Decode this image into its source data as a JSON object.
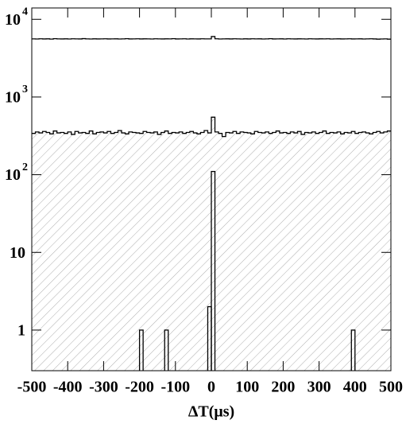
{
  "chart_data": {
    "type": "histogram",
    "xlabel": "ΔT(μs)",
    "log_y": true,
    "xlim": [
      -500,
      500
    ],
    "ylim": [
      0.3,
      14000
    ],
    "xticks": [
      -500,
      -400,
      -300,
      -200,
      -100,
      0,
      100,
      200,
      300,
      400,
      500
    ],
    "yticks": [
      1,
      10,
      {
        "value": 100,
        "label": "10",
        "exponent": "2"
      },
      {
        "value": 1000,
        "label": "10",
        "exponent": "3"
      },
      {
        "value": 10000,
        "label": "10",
        "exponent": "4"
      }
    ],
    "bins": [
      -500,
      -490,
      -480,
      -470,
      -460,
      -450,
      -440,
      -430,
      -420,
      -410,
      -400,
      -390,
      -380,
      -370,
      -360,
      -350,
      -340,
      -330,
      -320,
      -310,
      -300,
      -290,
      -280,
      -270,
      -260,
      -250,
      -240,
      -230,
      -220,
      -210,
      -200,
      -190,
      -180,
      -170,
      -160,
      -150,
      -140,
      -130,
      -120,
      -110,
      -100,
      -90,
      -80,
      -70,
      -60,
      -50,
      -40,
      -30,
      -20,
      -10,
      0,
      10,
      20,
      30,
      40,
      50,
      60,
      70,
      80,
      90,
      100,
      110,
      120,
      130,
      140,
      150,
      160,
      170,
      180,
      190,
      200,
      210,
      220,
      230,
      240,
      250,
      260,
      270,
      280,
      290,
      300,
      310,
      320,
      330,
      340,
      350,
      360,
      370,
      380,
      390,
      400,
      410,
      420,
      430,
      440,
      450,
      460,
      470,
      480,
      490,
      500
    ],
    "series": [
      {
        "color": "#000000",
        "histtype": "step",
        "hatch": false,
        "values": [
          5600,
          5580,
          5620,
          5590,
          5610,
          5570,
          5630,
          5600,
          5590,
          5610,
          5580,
          5620,
          5600,
          5590,
          5640,
          5600,
          5580,
          5610,
          5590,
          5600,
          5620,
          5590,
          5600,
          5610,
          5580,
          5600,
          5630,
          5590,
          5600,
          5620,
          5590,
          5610,
          5600,
          5580,
          5620,
          5600,
          5590,
          5610,
          5600,
          5630,
          5590,
          5600,
          5620,
          5580,
          5610,
          5600,
          5590,
          5620,
          5600,
          5600,
          6000,
          5620,
          5580,
          5600,
          5610,
          5590,
          5620,
          5600,
          5580,
          5610,
          5590,
          5620,
          5600,
          5610,
          5580,
          5600,
          5630,
          5590,
          5600,
          5610,
          5580,
          5620,
          5600,
          5590,
          5610,
          5600,
          5580,
          5620,
          5600,
          5590,
          5610,
          5600,
          5620,
          5580,
          5600,
          5610,
          5590,
          5600,
          5620,
          5590,
          5600,
          5610,
          5580,
          5600,
          5620,
          5590,
          5560,
          5580,
          5600,
          5560
        ]
      },
      {
        "color": "#000000",
        "histtype": "step",
        "hatch": true,
        "values": [
          340,
          355,
          345,
          360,
          350,
          335,
          365,
          345,
          350,
          340,
          355,
          330,
          360,
          345,
          350,
          340,
          365,
          335,
          350,
          355,
          345,
          360,
          340,
          350,
          370,
          345,
          335,
          355,
          350,
          345,
          340,
          360,
          350,
          345,
          355,
          330,
          350,
          365,
          340,
          350,
          345,
          355,
          340,
          350,
          360,
          345,
          335,
          350,
          370,
          345,
          550,
          355,
          340,
          310,
          350,
          345,
          360,
          340,
          355,
          350,
          345,
          335,
          360,
          350,
          345,
          355,
          340,
          350,
          365,
          345,
          350,
          340,
          355,
          345,
          360,
          330,
          350,
          345,
          355,
          340,
          350,
          365,
          340,
          350,
          345,
          355,
          335,
          350,
          345,
          360,
          340,
          350,
          355,
          345,
          335,
          350,
          360,
          345,
          355,
          365
        ]
      },
      {
        "color": "#000000",
        "histtype": "bar",
        "hatch": false,
        "values": [
          0,
          0,
          0,
          0,
          0,
          0,
          0,
          0,
          0,
          0,
          0,
          0,
          0,
          0,
          0,
          0,
          0,
          0,
          0,
          0,
          0,
          0,
          0,
          0,
          0,
          0,
          0,
          0,
          0,
          0,
          1,
          0,
          0,
          0,
          0,
          0,
          0,
          1,
          0,
          0,
          0,
          0,
          0,
          0,
          0,
          0,
          0,
          0,
          0,
          2,
          110,
          0,
          0,
          0,
          0,
          0,
          0,
          0,
          0,
          0,
          0,
          0,
          0,
          0,
          0,
          0,
          0,
          0,
          0,
          0,
          0,
          0,
          0,
          0,
          0,
          0,
          0,
          0,
          0,
          0,
          0,
          0,
          0,
          0,
          0,
          0,
          0,
          0,
          0,
          1,
          0,
          0,
          0,
          0,
          0,
          0,
          0,
          0,
          0,
          0
        ]
      }
    ]
  }
}
